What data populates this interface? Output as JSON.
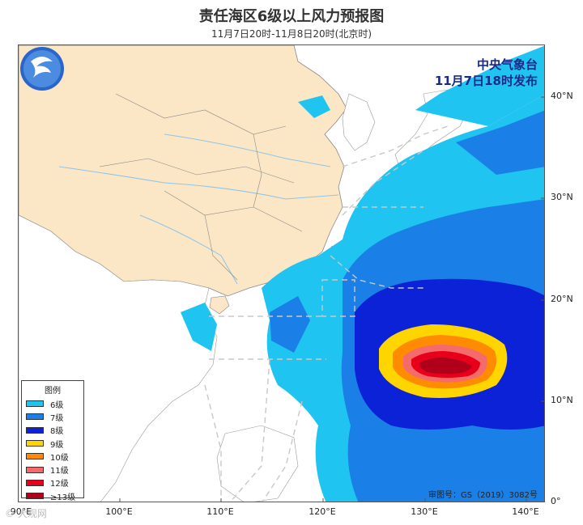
{
  "title": "责任海区6级以上风力预报图",
  "subtitle": "11月7日20时-11月8日20时(北京时)",
  "issuer": {
    "line1": "中央气象台",
    "line2": "11月7日18时发布"
  },
  "approval": "审图号：GS（2019）3082号",
  "watermark": "© 大观网",
  "legend": {
    "title": "图例",
    "items": [
      {
        "label": "6级",
        "color": "#1fc4f0"
      },
      {
        "label": "7级",
        "color": "#1a7fe6"
      },
      {
        "label": "8级",
        "color": "#0c22d6"
      },
      {
        "label": "9级",
        "color": "#ffd500"
      },
      {
        "label": "10级",
        "color": "#ff8c00"
      },
      {
        "label": "11级",
        "color": "#f56a6a"
      },
      {
        "label": "12级",
        "color": "#e8001a"
      },
      {
        "label": "≥13级",
        "color": "#b0001a"
      }
    ]
  },
  "axes": {
    "lat_labels": [
      "40°N",
      "30°N",
      "20°N",
      "10°N",
      "0°"
    ],
    "lon_labels": [
      "90°E",
      "100°E",
      "110°E",
      "120°E",
      "130°E",
      "140°E"
    ]
  },
  "colors": {
    "land_china": "#fbe7c6",
    "land_other": "#ffffff",
    "sea": "#ffffff",
    "boundary": "#888888",
    "river": "#8fc4e8"
  }
}
